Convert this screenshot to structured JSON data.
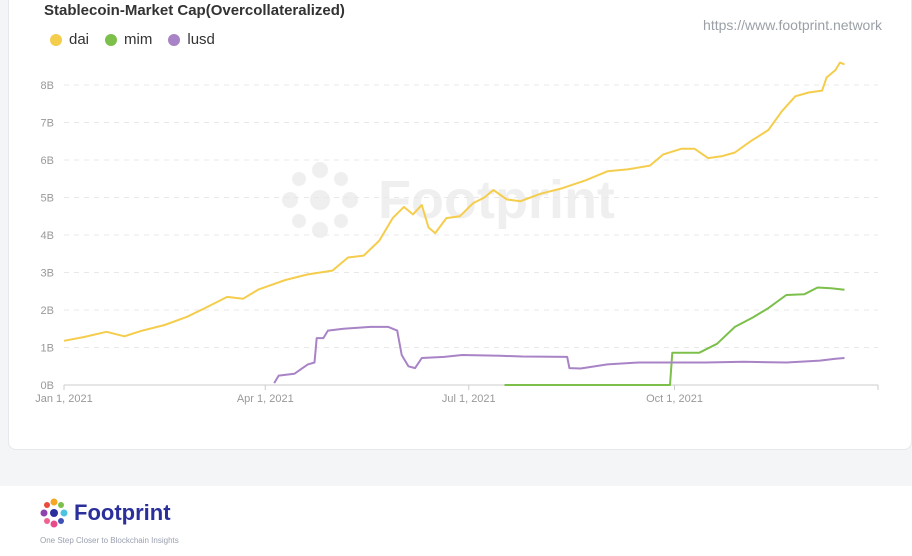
{
  "source_link": "https://www.footprint.network",
  "brand": {
    "name": "Footprint",
    "tagline": "One Step Closer to Blockchain Insights"
  },
  "colors": {
    "dai": "#f5cd4d",
    "mim": "#7cbf4b",
    "lusd": "#a883c6",
    "grid": "#e8e8e8",
    "axis_text": "#999999"
  },
  "chart_data": {
    "type": "line",
    "title": "Stablecoin-Market Cap(Overcollateralized)",
    "legend_position": "top-left",
    "grid": true,
    "x_range": [
      "2021-01-01",
      "2021-12-31"
    ],
    "x_ticks": [
      {
        "date": "2021-01-01",
        "label": "Jan 1, 2021"
      },
      {
        "date": "2021-04-01",
        "label": "Apr 1, 2021"
      },
      {
        "date": "2021-07-01",
        "label": "Jul 1, 2021"
      },
      {
        "date": "2021-10-01",
        "label": "Oct 1, 2021"
      }
    ],
    "y_range": [
      0,
      8.8
    ],
    "y_ticks": [
      {
        "value": 0,
        "label": "0B"
      },
      {
        "value": 1,
        "label": "1B"
      },
      {
        "value": 2,
        "label": "2B"
      },
      {
        "value": 3,
        "label": "3B"
      },
      {
        "value": 4,
        "label": "4B"
      },
      {
        "value": 5,
        "label": "5B"
      },
      {
        "value": 6,
        "label": "6B"
      },
      {
        "value": 7,
        "label": "7B"
      },
      {
        "value": 8,
        "label": "8B"
      }
    ],
    "series": [
      {
        "name": "dai",
        "points": [
          [
            "2021-01-01",
            1.18
          ],
          [
            "2021-01-10",
            1.28
          ],
          [
            "2021-01-20",
            1.42
          ],
          [
            "2021-01-28",
            1.3
          ],
          [
            "2021-02-05",
            1.45
          ],
          [
            "2021-02-15",
            1.6
          ],
          [
            "2021-02-25",
            1.82
          ],
          [
            "2021-03-05",
            2.05
          ],
          [
            "2021-03-15",
            2.35
          ],
          [
            "2021-03-22",
            2.3
          ],
          [
            "2021-03-29",
            2.55
          ],
          [
            "2021-04-10",
            2.8
          ],
          [
            "2021-04-20",
            2.95
          ],
          [
            "2021-05-01",
            3.05
          ],
          [
            "2021-05-08",
            3.4
          ],
          [
            "2021-05-15",
            3.45
          ],
          [
            "2021-05-22",
            3.85
          ],
          [
            "2021-05-28",
            4.45
          ],
          [
            "2021-06-02",
            4.75
          ],
          [
            "2021-06-06",
            4.55
          ],
          [
            "2021-06-10",
            4.8
          ],
          [
            "2021-06-13",
            4.2
          ],
          [
            "2021-06-16",
            4.05
          ],
          [
            "2021-06-21",
            4.45
          ],
          [
            "2021-06-27",
            4.5
          ],
          [
            "2021-07-03",
            4.85
          ],
          [
            "2021-07-08",
            5.0
          ],
          [
            "2021-07-12",
            5.2
          ],
          [
            "2021-07-18",
            4.95
          ],
          [
            "2021-07-24",
            4.9
          ],
          [
            "2021-08-02",
            5.1
          ],
          [
            "2021-08-12",
            5.25
          ],
          [
            "2021-08-22",
            5.45
          ],
          [
            "2021-09-01",
            5.7
          ],
          [
            "2021-09-10",
            5.75
          ],
          [
            "2021-09-20",
            5.85
          ],
          [
            "2021-09-26",
            6.15
          ],
          [
            "2021-10-04",
            6.3
          ],
          [
            "2021-10-10",
            6.3
          ],
          [
            "2021-10-16",
            6.05
          ],
          [
            "2021-10-22",
            6.1
          ],
          [
            "2021-10-28",
            6.2
          ],
          [
            "2021-11-04",
            6.5
          ],
          [
            "2021-11-12",
            6.8
          ],
          [
            "2021-11-18",
            7.3
          ],
          [
            "2021-11-24",
            7.7
          ],
          [
            "2021-11-30",
            7.8
          ],
          [
            "2021-12-06",
            7.85
          ],
          [
            "2021-12-08",
            8.2
          ],
          [
            "2021-12-12",
            8.4
          ],
          [
            "2021-12-14",
            8.6
          ],
          [
            "2021-12-16",
            8.55
          ]
        ]
      },
      {
        "name": "mim",
        "points": [
          [
            "2021-07-17",
            0.0
          ],
          [
            "2021-09-29",
            0.0
          ],
          [
            "2021-09-30",
            0.86
          ],
          [
            "2021-10-12",
            0.86
          ],
          [
            "2021-10-20",
            1.1
          ],
          [
            "2021-10-28",
            1.55
          ],
          [
            "2021-11-05",
            1.8
          ],
          [
            "2021-11-12",
            2.05
          ],
          [
            "2021-11-20",
            2.4
          ],
          [
            "2021-11-28",
            2.42
          ],
          [
            "2021-12-04",
            2.6
          ],
          [
            "2021-12-10",
            2.58
          ],
          [
            "2021-12-16",
            2.54
          ]
        ]
      },
      {
        "name": "lusd",
        "points": [
          [
            "2021-04-05",
            0.05
          ],
          [
            "2021-04-07",
            0.25
          ],
          [
            "2021-04-14",
            0.3
          ],
          [
            "2021-04-20",
            0.55
          ],
          [
            "2021-04-23",
            0.6
          ],
          [
            "2021-04-24",
            1.25
          ],
          [
            "2021-04-27",
            1.25
          ],
          [
            "2021-04-29",
            1.45
          ],
          [
            "2021-05-06",
            1.5
          ],
          [
            "2021-05-18",
            1.55
          ],
          [
            "2021-05-26",
            1.55
          ],
          [
            "2021-05-30",
            1.45
          ],
          [
            "2021-06-01",
            0.8
          ],
          [
            "2021-06-04",
            0.5
          ],
          [
            "2021-06-07",
            0.45
          ],
          [
            "2021-06-10",
            0.72
          ],
          [
            "2021-06-20",
            0.75
          ],
          [
            "2021-06-28",
            0.8
          ],
          [
            "2021-07-15",
            0.78
          ],
          [
            "2021-07-25",
            0.76
          ],
          [
            "2021-08-14",
            0.75
          ],
          [
            "2021-08-15",
            0.45
          ],
          [
            "2021-08-20",
            0.44
          ],
          [
            "2021-09-01",
            0.55
          ],
          [
            "2021-09-15",
            0.6
          ],
          [
            "2021-10-01",
            0.6
          ],
          [
            "2021-10-15",
            0.6
          ],
          [
            "2021-11-01",
            0.62
          ],
          [
            "2021-11-20",
            0.6
          ],
          [
            "2021-12-05",
            0.65
          ],
          [
            "2021-12-12",
            0.7
          ],
          [
            "2021-12-16",
            0.72
          ]
        ]
      }
    ]
  }
}
